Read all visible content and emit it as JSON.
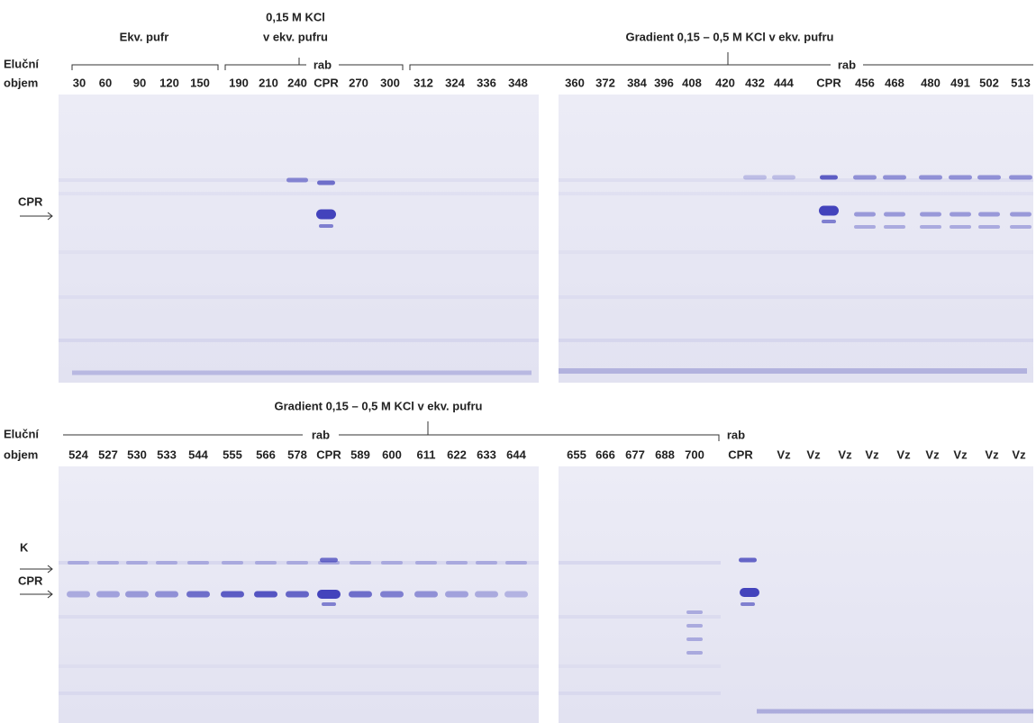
{
  "top": {
    "row_label_1": "Eluční",
    "row_label_2": "objem",
    "group_1": "Ekv. pufr",
    "group_2_line_1": "0,15 M KCl",
    "group_2_line_2": "v ekv. pufru",
    "group_3": "Gradient 0,15 – 0,5 M KCl v ekv. pufru",
    "rab_labels": [
      "rab",
      "rab"
    ],
    "arrow_label": "CPR",
    "lanes_left": [
      "30",
      "60",
      "90",
      "120",
      "150",
      "190",
      "210",
      "240",
      "CPR",
      "270",
      "300",
      "312",
      "324",
      "336",
      "348"
    ],
    "lanes_right": [
      "360",
      "372",
      "384",
      "396",
      "408",
      "420",
      "432",
      "444",
      "CPR",
      "456",
      "468",
      "480",
      "491",
      "502",
      "513"
    ]
  },
  "bottom": {
    "group": "Gradient 0,15 – 0,5 M KCl v ekv. pufru",
    "row_label_1": "Eluční",
    "row_label_2": "objem",
    "rab_labels": [
      "rab",
      "rab"
    ],
    "arrow_labels": [
      "K",
      "CPR"
    ],
    "lanes_left": [
      "524",
      "527",
      "530",
      "533",
      "544",
      "555",
      "566",
      "578",
      "CPR",
      "589",
      "600",
      "611",
      "622",
      "633",
      "644"
    ],
    "lanes_right": [
      "655",
      "666",
      "677",
      "688",
      "700",
      "CPR",
      "Vz",
      "Vz",
      "Vz",
      "Vz",
      "Vz",
      "Vz",
      "Vz",
      "Vz",
      "Vz"
    ]
  }
}
